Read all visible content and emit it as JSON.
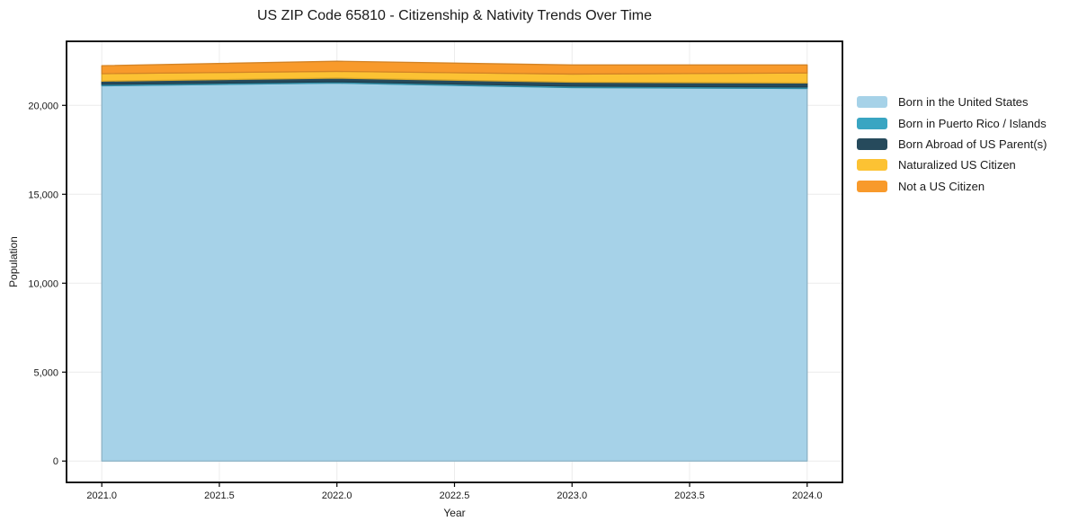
{
  "chart_data": {
    "type": "area",
    "stacked": true,
    "title": "US ZIP Code 65810 - Citizenship & Nativity Trends Over Time",
    "xlabel": "Year",
    "ylabel": "Population",
    "x": [
      2021,
      2022,
      2023,
      2024
    ],
    "series": [
      {
        "name": "Born in the United States",
        "color": "#A6D2E8",
        "values": [
          21100,
          21250,
          21000,
          20950
        ]
      },
      {
        "name": "Born in Puerto Rico / Islands",
        "color": "#39A5C2",
        "values": [
          80,
          80,
          80,
          80
        ]
      },
      {
        "name": "Born Abroad of US Parent(s)",
        "color": "#264A5C",
        "values": [
          180,
          200,
          220,
          230
        ]
      },
      {
        "name": "Naturalized US Citizen",
        "color": "#FCC233",
        "values": [
          420,
          380,
          460,
          560
        ]
      },
      {
        "name": "Not a US Citizen",
        "color": "#F89A2B",
        "values": [
          450,
          570,
          510,
          450
        ]
      }
    ],
    "x_ticks": {
      "values": [
        2021.0,
        2021.5,
        2022.0,
        2022.5,
        2023.0,
        2023.5,
        2024.0
      ],
      "labels": [
        "2021.0",
        "2021.5",
        "2022.0",
        "2022.5",
        "2023.0",
        "2023.5",
        "2024.0"
      ]
    },
    "y_ticks": {
      "values": [
        0,
        5000,
        10000,
        15000,
        20000
      ],
      "labels": [
        "0",
        "5,000",
        "10,000",
        "15,000",
        "20,000"
      ]
    },
    "xlim": [
      2020.85,
      2024.15
    ],
    "ylim": [
      -1200,
      23600
    ],
    "grid": true,
    "grid_color": "#ececec",
    "axis_color": "#000000",
    "tick_label_color": "#1a1a1a",
    "legend_position": "right-outside"
  }
}
